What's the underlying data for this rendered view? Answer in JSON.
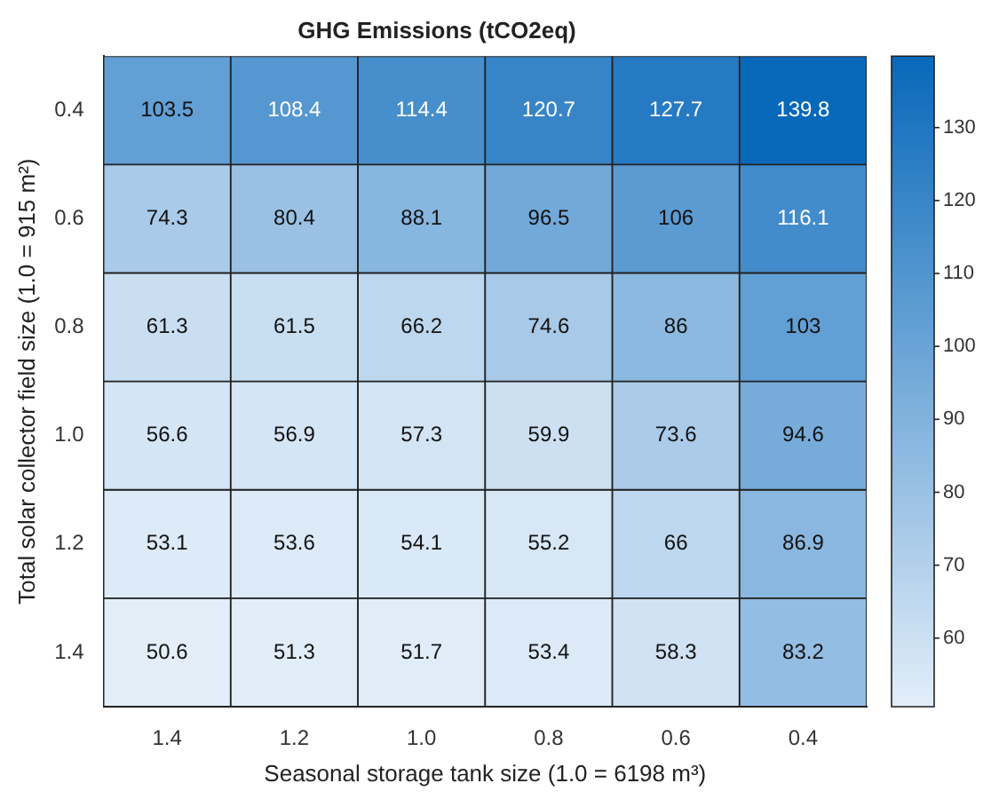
{
  "chart_data": {
    "type": "heatmap",
    "title": "GHG Emissions (tCO2eq)",
    "xlabel": "Seasonal storage tank size (1.0 = 6198 m³)",
    "ylabel": "Total solar collector field size (1.0 = 915 m²)",
    "categories": [
      "1.4",
      "1.2",
      "1.0",
      "0.8",
      "0.6",
      "0.4"
    ],
    "y_categories": [
      "0.4",
      "0.6",
      "0.8",
      "1.0",
      "1.2",
      "1.4"
    ],
    "cells": [
      [
        103.5,
        108.4,
        114.4,
        120.7,
        127.7,
        139.8
      ],
      [
        74.3,
        80.4,
        88.1,
        96.5,
        106,
        116.1
      ],
      [
        61.3,
        61.5,
        66.2,
        74.6,
        86,
        103
      ],
      [
        56.6,
        56.9,
        57.3,
        59.9,
        73.6,
        94.6
      ],
      [
        53.1,
        53.6,
        54.1,
        55.2,
        66,
        86.9
      ],
      [
        50.6,
        51.3,
        51.7,
        53.4,
        58.3,
        83.2
      ]
    ],
    "data_labels": true,
    "clim": [
      50.6,
      139.8
    ],
    "cticks": [
      60,
      70,
      80,
      90,
      100,
      110,
      120,
      130
    ]
  }
}
